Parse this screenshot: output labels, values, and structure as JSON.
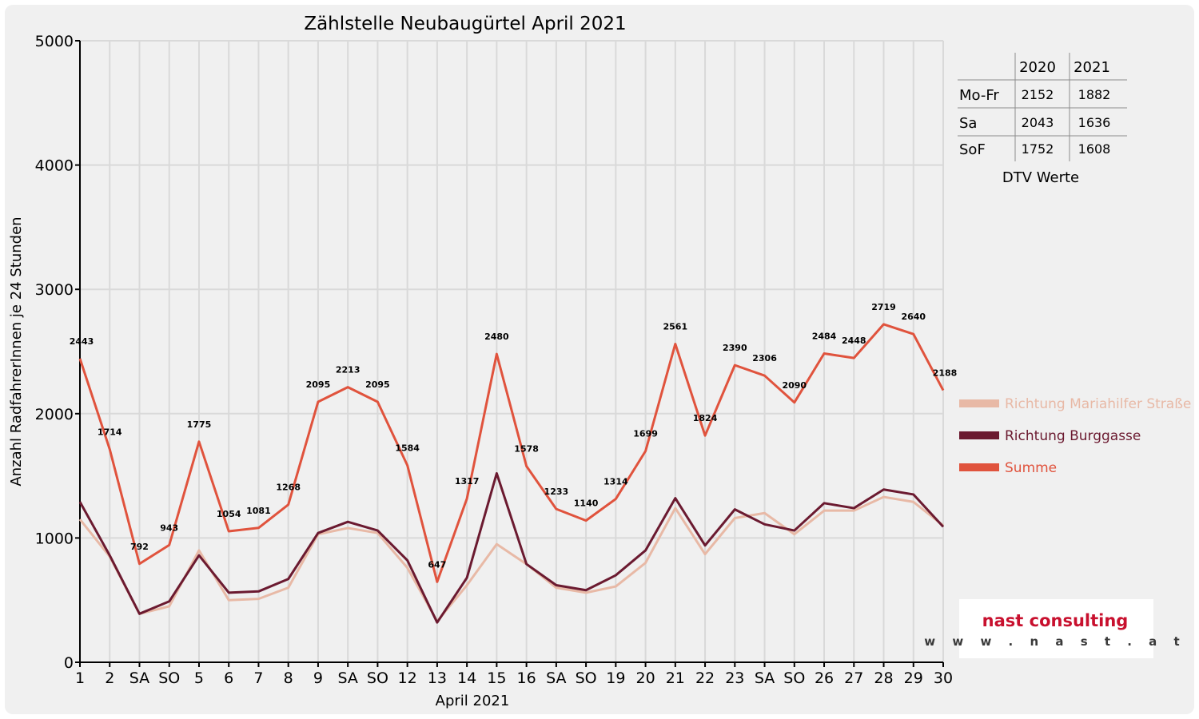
{
  "chart_data": {
    "type": "line",
    "title": "Zählstelle Neubaugürtel April 2021",
    "ylabel": "Anzahl RadfahrerInnen je 24 Stunden",
    "xlabel": "April 2021",
    "ylim": [
      0,
      5000
    ],
    "y_ticks": [
      "0",
      "1000",
      "2000",
      "3000",
      "4000",
      "5000"
    ],
    "grid": true,
    "legend_position": "right",
    "categories": [
      "1",
      "2",
      "SA",
      "SO",
      "5",
      "6",
      "7",
      "8",
      "9",
      "SA",
      "SO",
      "12",
      "13",
      "14",
      "15",
      "16",
      "SA",
      "SO",
      "19",
      "20",
      "21",
      "22",
      "23",
      "SA",
      "SO",
      "26",
      "27",
      "28",
      "29",
      "30"
    ],
    "category_colors": [
      "#000000",
      "#000000",
      "#000000",
      "#ff0000",
      "#ff0000",
      "#000000",
      "#000000",
      "#000000",
      "#000000",
      "#000000",
      "#ff0000",
      "#000000",
      "#000000",
      "#000000",
      "#000000",
      "#000000",
      "#000000",
      "#ff0000",
      "#000000",
      "#000000",
      "#000000",
      "#000000",
      "#000000",
      "#000000",
      "#ff0000",
      "#000000",
      "#000000",
      "#000000",
      "#000000",
      "#000000"
    ],
    "series": [
      {
        "name": "Richtung Mariahilfer Straße",
        "color": "#e8b9a6",
        "values": [
          1150,
          850,
          390,
          450,
          900,
          500,
          510,
          600,
          1030,
          1080,
          1040,
          760,
          330,
          620,
          950,
          790,
          600,
          560,
          610,
          800,
          1240,
          870,
          1160,
          1200,
          1030,
          1220,
          1220,
          1330,
          1290,
          1100
        ]
      },
      {
        "name": "Richtung Burggasse",
        "color": "#6b1a30",
        "values": [
          1290,
          860,
          390,
          490,
          860,
          560,
          570,
          670,
          1040,
          1130,
          1060,
          820,
          320,
          680,
          1520,
          790,
          620,
          580,
          700,
          900,
          1320,
          940,
          1230,
          1110,
          1060,
          1280,
          1240,
          1390,
          1350,
          1090
        ]
      },
      {
        "name": "Summe",
        "color": "#e0533d",
        "values": [
          2443,
          1714,
          792,
          943,
          1775,
          1054,
          1081,
          1268,
          2095,
          2213,
          2095,
          1584,
          647,
          1317,
          2480,
          1578,
          1233,
          1140,
          1314,
          1699,
          2561,
          1824,
          2390,
          2306,
          2090,
          2484,
          2448,
          2719,
          2640,
          2188
        ]
      }
    ],
    "data_labels": [
      "2443",
      "1714",
      "792",
      "943",
      "1775",
      "1054",
      "1081",
      "1268",
      "2095",
      "2213",
      "2095",
      "1584",
      "647",
      "1317",
      "2480",
      "1578",
      "1233",
      "1140",
      "1314",
      "1699",
      "2561",
      "1824",
      "2390",
      "2306",
      "2090",
      "2484",
      "2448",
      "2719",
      "2640",
      "2188"
    ]
  },
  "dtv_table": {
    "headers": [
      "2020",
      "2021"
    ],
    "rows": [
      {
        "label": "Mo-Fr",
        "v2020": "2152",
        "v2021": "1882"
      },
      {
        "label": "Sa",
        "v2020": "2043",
        "v2021": "1636"
      },
      {
        "label": "SoF",
        "v2020": "1752",
        "v2021": "1608"
      }
    ],
    "caption": "DTV Werte"
  },
  "logo": {
    "name": "nast consulting",
    "url": "w w w . n a s t . a t"
  }
}
